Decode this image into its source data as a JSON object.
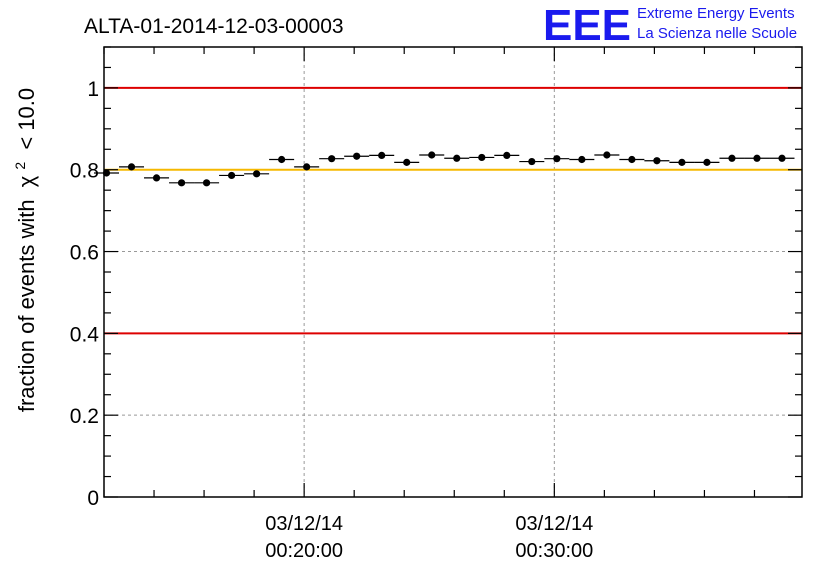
{
  "header": {
    "run_id": "ALTA-01-2014-12-03-00003",
    "logo_letters": "EEE",
    "logo_line1": "Extreme Energy Events",
    "logo_line2": "La Scienza nelle Scuole"
  },
  "colors": {
    "limit_line": "#dd0000",
    "reference_line": "#f5b800",
    "logo": "#1a1aee",
    "marker": "#000000",
    "grid": "#999999"
  },
  "chart_data": {
    "type": "scatter",
    "title": "ALTA-01-2014-12-03-00003",
    "ylabel_prefix": "fraction of events with",
    "ylabel_symbol": "χ",
    "ylabel_exponent": "2",
    "ylabel_suffix": "< 10.0",
    "xlabel": "",
    "xlim_minutes": [
      12,
      39.9
    ],
    "ylim": [
      0,
      1.1
    ],
    "yticks": [
      {
        "value": 0,
        "label": "0"
      },
      {
        "value": 0.2,
        "label": "0.2"
      },
      {
        "value": 0.4,
        "label": "0.4"
      },
      {
        "value": 0.6,
        "label": "0.6"
      },
      {
        "value": 0.8,
        "label": "0.8"
      },
      {
        "value": 1,
        "label": "1"
      }
    ],
    "xticks": [
      {
        "minute": 20,
        "date": "03/12/14",
        "time": "00:20:00"
      },
      {
        "minute": 30,
        "date": "03/12/14",
        "time": "00:30:00"
      }
    ],
    "grid": true,
    "hlines": [
      {
        "y": 1.0,
        "role": "upper-limit"
      },
      {
        "y": 0.8,
        "role": "reference"
      },
      {
        "y": 0.4,
        "role": "lower-limit"
      }
    ],
    "bin_width_minutes": 1,
    "x_minutes": [
      12.1,
      13.1,
      14.1,
      15.1,
      16.1,
      17.1,
      18.1,
      19.1,
      20.1,
      21.1,
      22.1,
      23.1,
      24.1,
      25.1,
      26.1,
      27.1,
      28.1,
      29.1,
      30.1,
      31.1,
      32.1,
      33.1,
      34.1,
      35.1,
      36.1,
      37.1,
      38.1,
      39.1
    ],
    "values": [
      0.792,
      0.807,
      0.78,
      0.768,
      0.768,
      0.786,
      0.79,
      0.825,
      0.807,
      0.827,
      0.833,
      0.835,
      0.818,
      0.836,
      0.828,
      0.83,
      0.835,
      0.82,
      0.827,
      0.825,
      0.836,
      0.825,
      0.822,
      0.818,
      0.818,
      0.828,
      0.828,
      0.828
    ]
  }
}
